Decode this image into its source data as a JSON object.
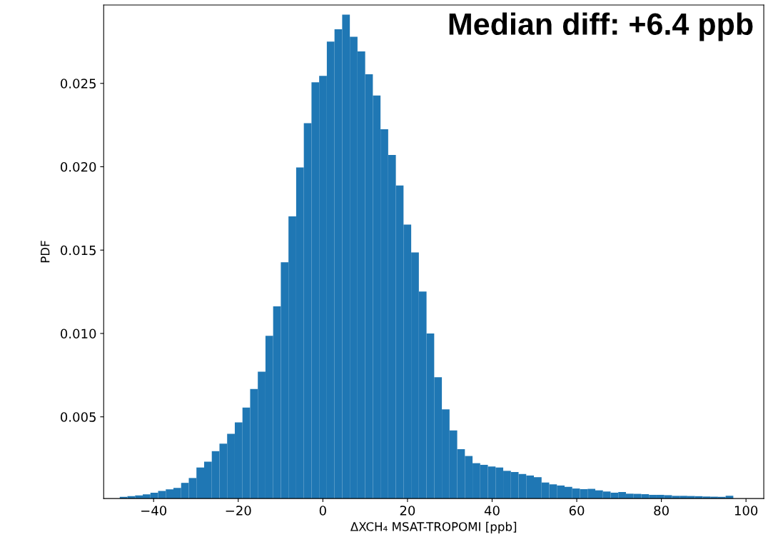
{
  "chart_data": {
    "type": "histogram",
    "xlabel": "ΔXCH₄ MSAT-TROPOMI [ppb]",
    "ylabel": "PDF",
    "annotations": [
      "Median diff: +6.4 ppb"
    ],
    "color": "#1f77b4",
    "bins": [
      -48.0,
      -46.1875,
      -44.375,
      -42.5625,
      -40.75,
      -38.9375,
      -37.125,
      -35.3125,
      -33.5,
      -31.6875,
      -29.875,
      -28.0625,
      -26.25,
      -24.4375,
      -22.625,
      -20.8125,
      -19.0,
      -17.1875,
      -15.375,
      -13.5625,
      -11.75,
      -9.9375,
      -8.125,
      -6.3125,
      -4.5,
      -2.6875,
      -0.875,
      0.9375,
      2.75,
      4.5625,
      6.375,
      8.1875,
      10.0,
      11.8125,
      13.625,
      15.4375,
      17.25,
      19.0625,
      20.875,
      22.6875,
      24.5,
      26.3125,
      28.125,
      29.9375,
      31.75,
      33.5625,
      35.375,
      37.1875,
      39.0,
      40.8125,
      42.625,
      44.4375,
      46.25,
      48.0625,
      49.875,
      51.6875,
      53.5,
      55.3125,
      57.125,
      58.9375,
      60.75,
      62.5625,
      64.375,
      66.1875,
      68.0,
      69.8125,
      71.625,
      73.4375,
      75.25,
      77.0625,
      78.875,
      80.6875,
      82.5,
      84.3125,
      86.125,
      87.9375,
      89.75,
      91.5625,
      93.375,
      95.1875,
      97.0
    ],
    "values": [
      0.0002,
      0.00024,
      0.00029,
      0.00035,
      0.00045,
      0.00055,
      0.00065,
      0.00074,
      0.00104,
      0.00133,
      0.00196,
      0.00231,
      0.00294,
      0.00339,
      0.00398,
      0.00467,
      0.00555,
      0.00667,
      0.00771,
      0.00986,
      0.01163,
      0.01427,
      0.01702,
      0.01996,
      0.02261,
      0.02506,
      0.02545,
      0.02751,
      0.02824,
      0.02912,
      0.0278,
      0.02692,
      0.02555,
      0.02427,
      0.02225,
      0.02071,
      0.01888,
      0.01653,
      0.01486,
      0.01251,
      0.01,
      0.00737,
      0.00545,
      0.00418,
      0.00306,
      0.00265,
      0.00222,
      0.00212,
      0.00202,
      0.00196,
      0.00176,
      0.00169,
      0.00157,
      0.00148,
      0.00138,
      0.00106,
      0.00095,
      0.00088,
      0.0008,
      0.0007,
      0.00066,
      0.00068,
      0.00059,
      0.00052,
      0.00045,
      0.00049,
      0.00039,
      0.00038,
      0.00036,
      0.00032,
      0.00032,
      0.0003,
      0.00026,
      0.00026,
      0.00025,
      0.00024,
      0.00022,
      0.00021,
      0.0002,
      0.00027
    ],
    "xlim": [
      -51.8,
      104.2
    ],
    "xticks": [
      {
        "value": -40,
        "label": "−40"
      },
      {
        "value": -20,
        "label": "−20"
      },
      0,
      20,
      40,
      60,
      80,
      100
    ],
    "ylim": [
      0.0001,
      0.0297
    ],
    "yticks": [
      0.005,
      {
        "value": 0.01,
        "label": "0.010"
      },
      0.015,
      {
        "value": 0.02,
        "label": "0.020"
      },
      0.025
    ],
    "grid": false,
    "legend": false
  }
}
